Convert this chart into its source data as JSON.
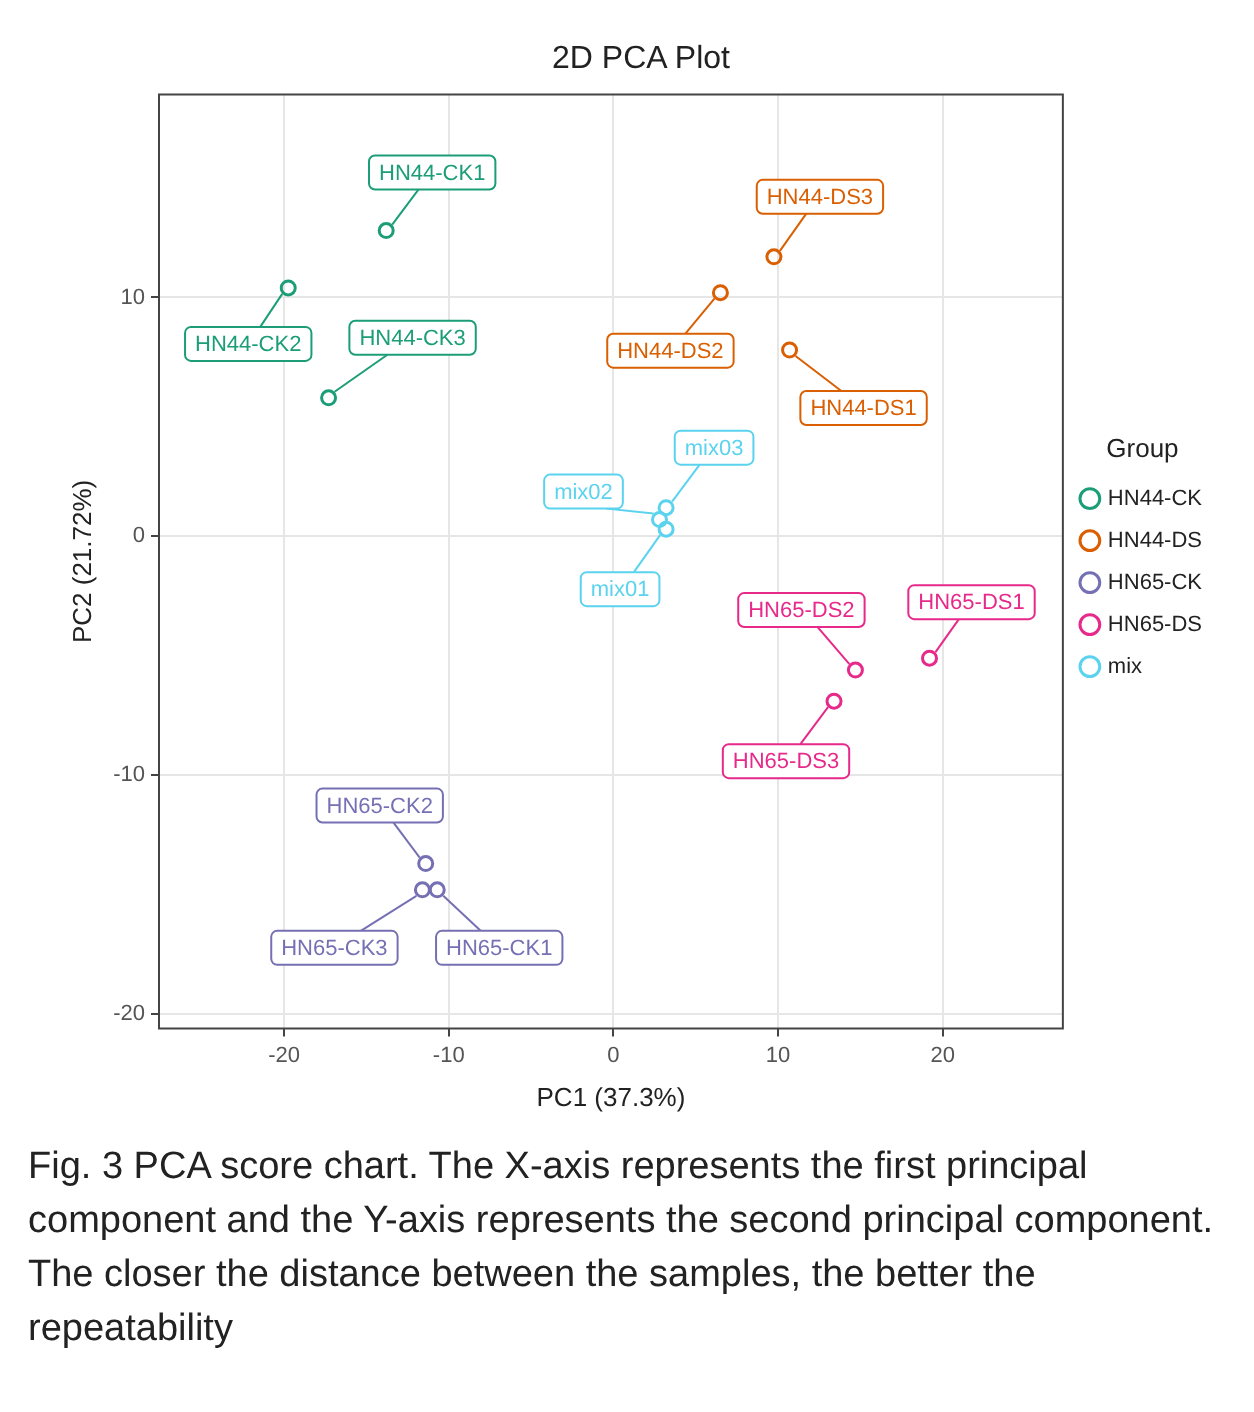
{
  "chart_data": {
    "type": "scatter",
    "title": "2D PCA Plot",
    "xlabel": "PC1 (37.3%)",
    "ylabel": "PC2 (21.72%)",
    "legend_title": "Group",
    "legend": "right",
    "grid": true,
    "marker": "circle",
    "xlim": [
      -27.6,
      27.3
    ],
    "ylim": [
      -20.6,
      18.5
    ],
    "xticks": [
      -20,
      -10,
      0,
      10,
      20
    ],
    "yticks": [
      -20,
      -10,
      0,
      10
    ],
    "series": [
      {
        "name": "HN44-CK",
        "color": "#1b9e77",
        "x": [
          -13.8,
          -19.75,
          -17.3
        ],
        "values": [
          12.8,
          10.4,
          5.8
        ]
      },
      {
        "name": "HN44-DS",
        "color": "#d95f02",
        "x": [
          10.7,
          6.5,
          9.75
        ],
        "values": [
          7.8,
          10.2,
          11.7
        ]
      },
      {
        "name": "HN65-CK",
        "color": "#7570b3",
        "x": [
          -10.7,
          -11.4,
          -11.6
        ],
        "values": [
          -14.8,
          -13.7,
          -14.8
        ]
      },
      {
        "name": "HN65-DS",
        "color": "#e7298a",
        "x": [
          19.2,
          14.7,
          13.4
        ],
        "values": [
          -5.1,
          -5.6,
          -6.9
        ]
      },
      {
        "name": "mix",
        "color": "#5bd3ee",
        "x": [
          3.2,
          2.8,
          3.2
        ],
        "values": [
          0.3,
          0.7,
          1.2
        ]
      }
    ],
    "annotations": [
      {
        "text": "HN44-CK1",
        "x": -13.8,
        "y": 12.8
      },
      {
        "text": "HN44-CK2",
        "x": -19.75,
        "y": 10.4
      },
      {
        "text": "HN44-CK3",
        "x": -17.3,
        "y": 5.8
      },
      {
        "text": "HN44-DS1",
        "x": 10.7,
        "y": 7.8
      },
      {
        "text": "HN44-DS2",
        "x": 6.5,
        "y": 10.2
      },
      {
        "text": "HN44-DS3",
        "x": 9.75,
        "y": 11.7
      },
      {
        "text": "HN65-CK1",
        "x": -10.7,
        "y": -14.8
      },
      {
        "text": "HN65-CK2",
        "x": -11.4,
        "y": -13.7
      },
      {
        "text": "HN65-CK3",
        "x": -11.6,
        "y": -14.8
      },
      {
        "text": "HN65-DS1",
        "x": 19.2,
        "y": -5.1
      },
      {
        "text": "HN65-DS2",
        "x": 14.7,
        "y": -5.6
      },
      {
        "text": "HN65-DS3",
        "x": 13.4,
        "y": -6.9
      },
      {
        "text": "mix01",
        "x": 3.2,
        "y": 0.3
      },
      {
        "text": "mix02",
        "x": 2.8,
        "y": 0.7
      },
      {
        "text": "mix03",
        "x": 3.2,
        "y": 1.2
      },
      "Fig. 3 PCA score chart. The X-axis represents the first principal component and the Y-axis represents the second principal component. The closer the distance between the samples, the better the repeatability"
    ]
  }
}
